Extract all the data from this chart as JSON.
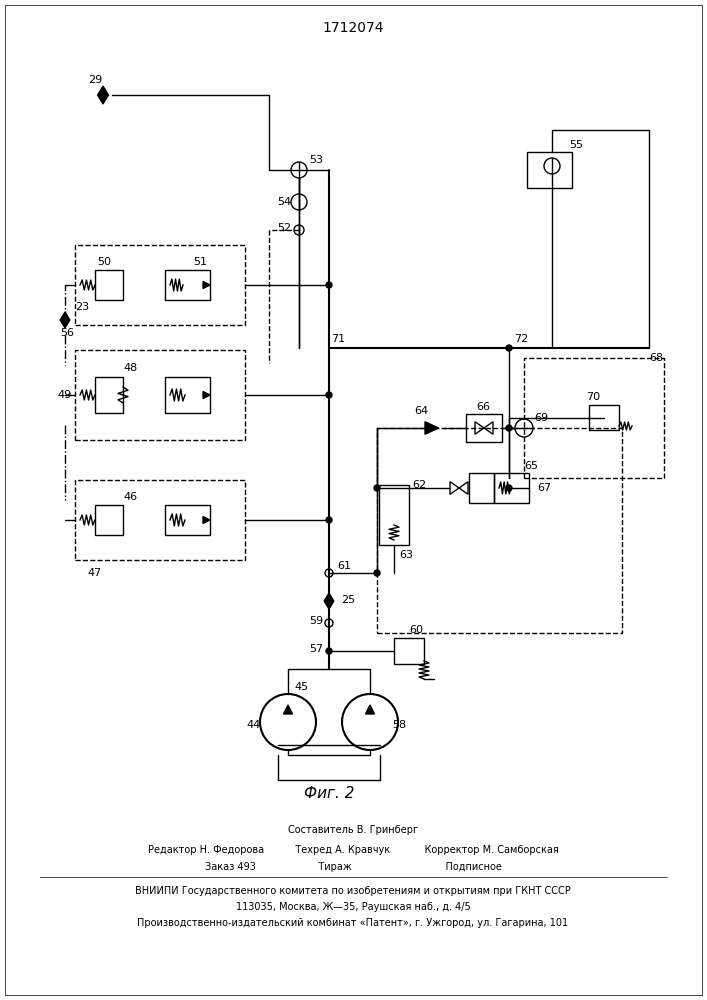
{
  "title": "1712074",
  "fig_label": "Фиг. 2",
  "bg_color": "#ffffff",
  "line_color": "#000000",
  "footer_lines": [
    "Составитель В. Гринберг",
    "Редактор Н. Федорова          Техред А. Кравчук           Корректор М. Самборская",
    "Заказ 493                    Тираж                              Подписное",
    "ВНИИПИ Государственного комитета по изобретениям и открытиям при ГКНТ СССР",
    "113035, Москва, Ж—35, Раушская наб., д. 4/5",
    "Производственно-издательский комбинат «Патент», г. Ужгород, ул. Гагарина, 101"
  ]
}
